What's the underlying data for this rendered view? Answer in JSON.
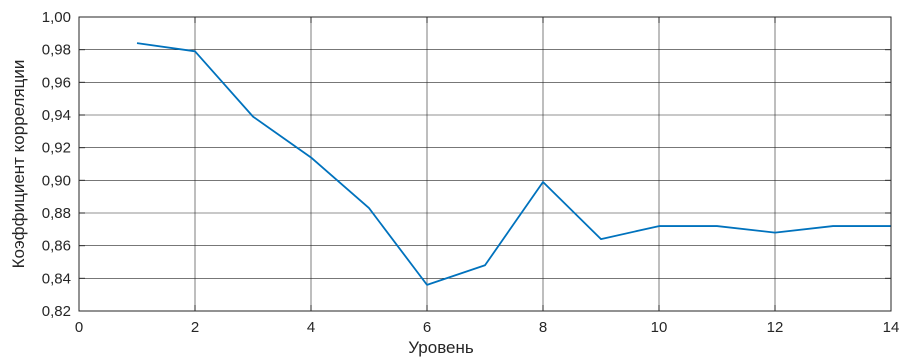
{
  "chart_data": {
    "type": "line",
    "title": "",
    "xlabel": "Уровень",
    "ylabel": "Коэффициент корреляции",
    "xlim": [
      0,
      14
    ],
    "ylim": [
      0.82,
      1.0
    ],
    "x_ticks": [
      0,
      2,
      4,
      6,
      8,
      10,
      12,
      14
    ],
    "y_ticks": [
      0.82,
      0.84,
      0.86,
      0.88,
      0.9,
      0.92,
      0.94,
      0.96,
      0.98,
      1.0
    ],
    "x_tick_labels": [
      "0",
      "2",
      "4",
      "6",
      "8",
      "10",
      "12",
      "14"
    ],
    "y_tick_labels": [
      "0,82",
      "0,84",
      "0,86",
      "0,88",
      "0,90",
      "0,92",
      "0,94",
      "0,96",
      "0,98",
      "1,00"
    ],
    "grid": true,
    "series": [
      {
        "color": "#0072bd",
        "x": [
          1,
          2,
          3,
          4,
          5,
          6,
          7,
          8,
          9,
          10,
          11,
          12,
          13,
          14
        ],
        "y": [
          0.984,
          0.979,
          0.939,
          0.914,
          0.883,
          0.836,
          0.848,
          0.899,
          0.864,
          0.872,
          0.872,
          0.868,
          0.872,
          0.872
        ]
      }
    ]
  }
}
